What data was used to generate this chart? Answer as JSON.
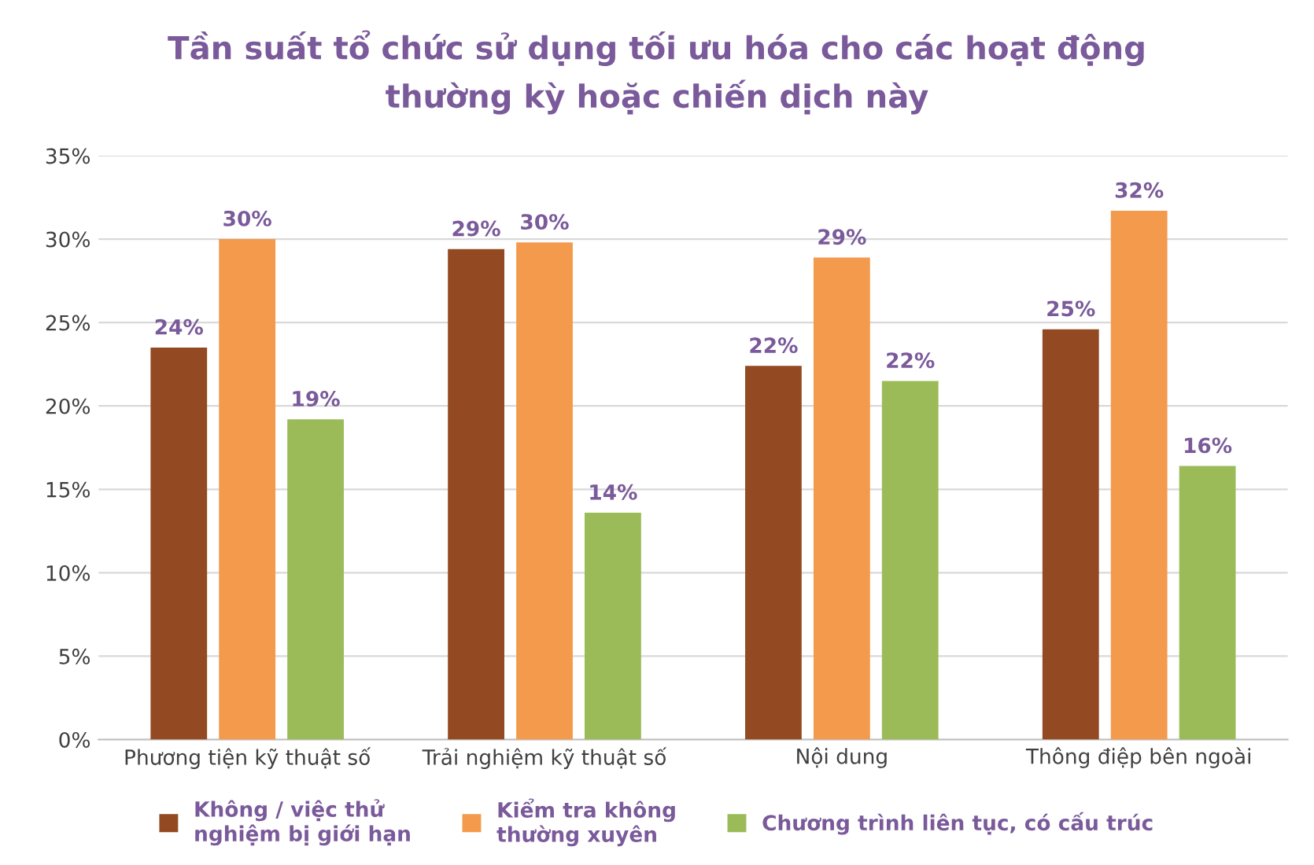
{
  "chart_data": {
    "type": "bar",
    "title": "Tần suất tổ chức sử dụng tối ưu hóa cho các hoạt động\nthường kỳ hoặc chiến dịch này",
    "categories": [
      "Phương tiện kỹ thuật số",
      "Trải nghiệm kỹ thuật số",
      "Nội dung",
      "Thông điệp bên ngoài"
    ],
    "series": [
      {
        "name": "Không / việc thử\nnghiệm bị giới hạn",
        "color": "#934a22",
        "values": [
          23.5,
          29.4,
          22.4,
          24.6
        ],
        "value_labels": [
          "24%",
          "29%",
          "22%",
          "25%"
        ]
      },
      {
        "name": "Kiểm tra không\nthường xuyên",
        "color": "#f39a4c",
        "values": [
          30.0,
          29.8,
          28.9,
          31.7
        ],
        "value_labels": [
          "30%",
          "30%",
          "29%",
          "32%"
        ]
      },
      {
        "name": "Chương trình liên tục, có cấu trúc",
        "color": "#9bbb59",
        "values": [
          19.2,
          13.6,
          21.5,
          16.4
        ],
        "value_labels": [
          "19%",
          "14%",
          "22%",
          "16%"
        ]
      }
    ],
    "ylim": [
      0,
      35
    ],
    "yticks": [
      {
        "value": 0,
        "label": "0%"
      },
      {
        "value": 5,
        "label": "5%"
      },
      {
        "value": 10,
        "label": "10%"
      },
      {
        "value": 15,
        "label": "15%"
      },
      {
        "value": 20,
        "label": "20%"
      },
      {
        "value": 25,
        "label": "25%"
      },
      {
        "value": 30,
        "label": "30%"
      },
      {
        "value": 35,
        "label": "35%"
      }
    ],
    "grid": "y",
    "legend": "bottom"
  }
}
